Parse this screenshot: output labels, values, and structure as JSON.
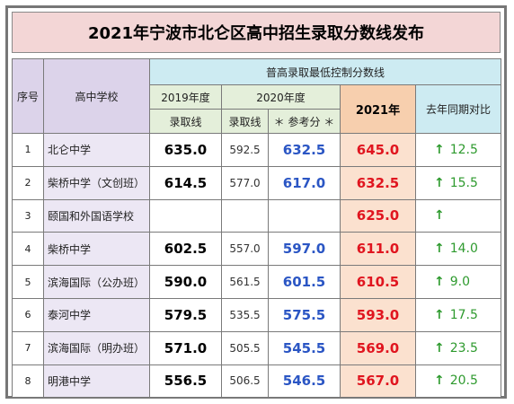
{
  "title": "2021年宁波市北仑区高中招生录取分数线发布",
  "headers": {
    "no": "序号",
    "school": "高中学校",
    "group": "普高录取最低控制分数线",
    "y2019": "2019年度",
    "y2020": "2020年度",
    "y2021": "2021年",
    "compare": "去年同期对比",
    "admit2019": "录取线",
    "admit2020": "录取线",
    "reference": "＊ 参考分 ＊"
  },
  "arrow": "↑",
  "colors": {
    "title_bg": "#f3d6d6",
    "header_lavender": "#dcd3ea",
    "header_cyan": "#cdebf2",
    "header_green": "#e4efda",
    "header_orange": "#f7cfae",
    "blue": "#2b56c4",
    "red": "#e0151f",
    "green": "#2e9a2e"
  },
  "rows": [
    {
      "no": "1",
      "school": "北仑中学",
      "y2019": "635.0",
      "y2020_admit": "592.5",
      "y2020_ref": "632.5",
      "y2021": "645.0",
      "diff": "12.5"
    },
    {
      "no": "2",
      "school": "柴桥中学（文创班）",
      "y2019": "614.5",
      "y2020_admit": "577.0",
      "y2020_ref": "617.0",
      "y2021": "632.5",
      "diff": "15.5"
    },
    {
      "no": "3",
      "school": "颐国和外国语学校",
      "y2019": "",
      "y2020_admit": "",
      "y2020_ref": "",
      "y2021": "625.0",
      "diff": ""
    },
    {
      "no": "4",
      "school": "柴桥中学",
      "y2019": "602.5",
      "y2020_admit": "557.0",
      "y2020_ref": "597.0",
      "y2021": "611.0",
      "diff": "14.0"
    },
    {
      "no": "5",
      "school": "滨海国际（公办班）",
      "y2019": "590.0",
      "y2020_admit": "561.5",
      "y2020_ref": "601.5",
      "y2021": "610.5",
      "diff": "9.0"
    },
    {
      "no": "6",
      "school": "泰河中学",
      "y2019": "579.5",
      "y2020_admit": "535.5",
      "y2020_ref": "575.5",
      "y2021": "593.0",
      "diff": "17.5"
    },
    {
      "no": "7",
      "school": "滨海国际（明办班）",
      "y2019": "571.0",
      "y2020_admit": "505.5",
      "y2020_ref": "545.5",
      "y2021": "569.0",
      "diff": "23.5"
    },
    {
      "no": "8",
      "school": "明港中学",
      "y2019": "556.5",
      "y2020_admit": "506.5",
      "y2020_ref": "546.5",
      "y2021": "567.0",
      "diff": "20.5"
    }
  ]
}
